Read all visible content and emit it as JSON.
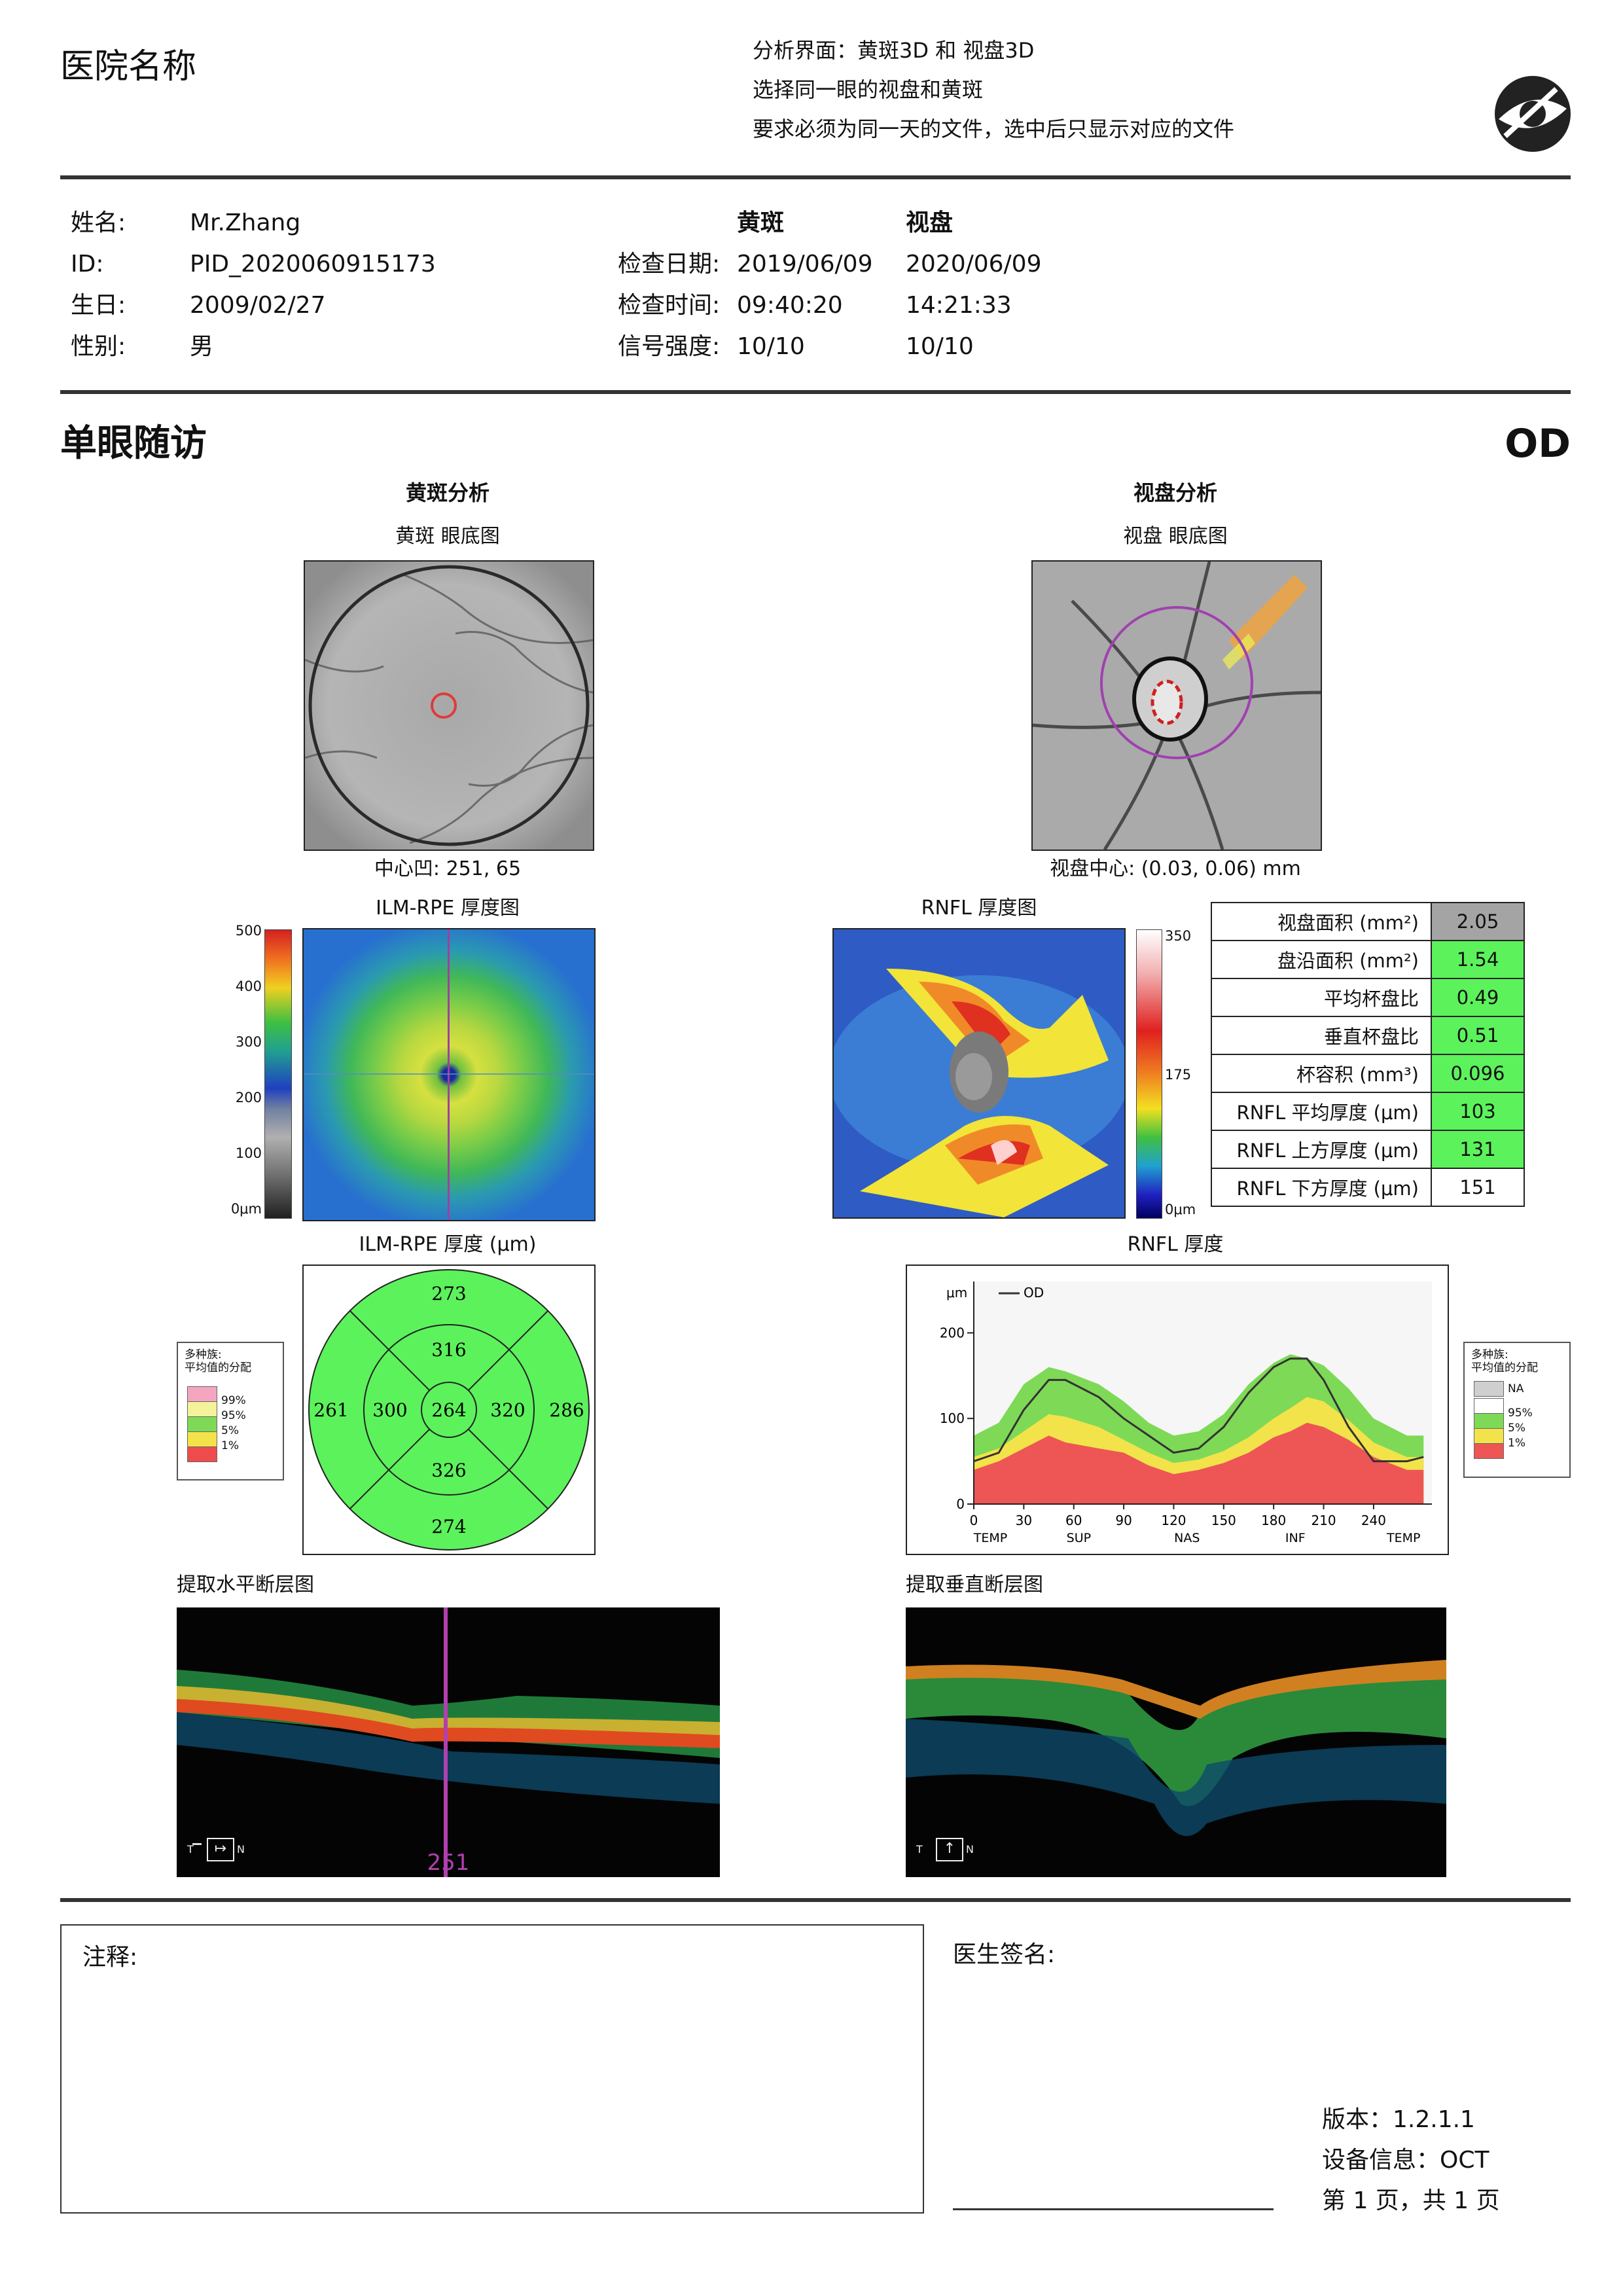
{
  "header": {
    "hospital_name": "医院名称",
    "notes": [
      "分析界面：黄斑3D 和 视盘3D",
      "选择同一眼的视盘和黄斑",
      "要求必须为同一天的文件，选中后只显示对应的文件"
    ],
    "logo_icon": "eye-logo-icon"
  },
  "patient": {
    "name_label": "姓名:",
    "name": "Mr.Zhang",
    "id_label": "ID:",
    "id": "PID_2020060915173",
    "dob_label": "生日:",
    "dob": "2009/02/27",
    "sex_label": "性别:",
    "sex": "男"
  },
  "exam": {
    "col_macula": "黄斑",
    "col_disc": "视盘",
    "date_label": "检查日期:",
    "date_macula": "2019/06/09",
    "date_disc": "2020/06/09",
    "time_label": "检查时间:",
    "time_macula": "09:40:20",
    "time_disc": "14:21:33",
    "signal_label": "信号强度:",
    "signal_macula": "10/10",
    "signal_disc": "10/10"
  },
  "section": {
    "title": "单眼随访",
    "eye": "OD"
  },
  "macula": {
    "title": "黄斑分析",
    "fundus_title": "黄斑 眼底图",
    "fovea_caption": "中心凹: 251, 65",
    "thickness_map_title": "ILM-RPE 厚度图",
    "scale_ticks": [
      "500",
      "400",
      "300",
      "200",
      "100",
      "0μm"
    ],
    "sector_title": "ILM-RPE 厚度 (μm)",
    "sectors": {
      "outer_top": "273",
      "inner_top": "316",
      "outer_left": "261",
      "inner_left": "300",
      "center": "264",
      "inner_right": "320",
      "outer_right": "286",
      "inner_bottom": "326",
      "outer_bottom": "274"
    },
    "legend": {
      "title1": "多种族:",
      "title2": "平均值的分配",
      "items": [
        "99%",
        "95%",
        "5%",
        "1%"
      ],
      "colors": [
        "#f4a6c0",
        "#f4f29a",
        "#7ed957",
        "#f2e34a",
        "#ee4c4c"
      ]
    },
    "bscan_title": "提取水平断层图",
    "bscan_marker": "251",
    "bscan_orient_left": "T",
    "bscan_orient_right": "N"
  },
  "disc": {
    "title": "视盘分析",
    "fundus_title": "视盘 眼底图",
    "center_caption": "视盘中心:  (0.03, 0.06) mm",
    "rnfl_map_title": "RNFL 厚度图",
    "scale_ticks": [
      "350",
      "175",
      "0μm"
    ],
    "params": [
      {
        "label": "视盘面积 (mm²)",
        "value": "2.05",
        "status": "gray"
      },
      {
        "label": "盘沿面积 (mm²)",
        "value": "1.54",
        "status": "green"
      },
      {
        "label": "平均杯盘比",
        "value": "0.49",
        "status": "green"
      },
      {
        "label": "垂直杯盘比",
        "value": "0.51",
        "status": "green"
      },
      {
        "label": "杯容积 (mm³)",
        "value": "0.096",
        "status": "green"
      },
      {
        "label": "RNFL 平均厚度 (μm)",
        "value": "103",
        "status": "green"
      },
      {
        "label": "RNFL 上方厚度 (μm)",
        "value": "131",
        "status": "green"
      },
      {
        "label": "RNFL 下方厚度 (μm)",
        "value": "151",
        "status": "white"
      }
    ],
    "rnfl_chart_title": "RNFL 厚度",
    "legend": {
      "title1": "多种族:",
      "title2": "平均值的分配",
      "items": [
        "NA",
        "95%",
        "5%",
        "1%"
      ],
      "colors": [
        "#cfcfcf",
        "#ffffff",
        "#7ed957",
        "#f2e34a",
        "#ee5555"
      ]
    },
    "bscan_title": "提取垂直断层图",
    "bscan_orient_left": "T",
    "bscan_orient_right": "N"
  },
  "chart_data": {
    "type": "area",
    "title": "RNFL 厚度",
    "ylabel": "μm",
    "ylim": [
      0,
      260
    ],
    "xlim": [
      0,
      275
    ],
    "yticks": [
      0,
      100,
      200
    ],
    "xticks": [
      0,
      30,
      60,
      90,
      120,
      150,
      180,
      210,
      240
    ],
    "region_labels": [
      {
        "x": 10,
        "label": "TEMP"
      },
      {
        "x": 63,
        "label": "SUP"
      },
      {
        "x": 128,
        "label": "NAS"
      },
      {
        "x": 193,
        "label": "INF"
      },
      {
        "x": 258,
        "label": "TEMP"
      }
    ],
    "x": [
      0,
      15,
      30,
      45,
      55,
      75,
      90,
      105,
      120,
      135,
      150,
      165,
      180,
      190,
      200,
      210,
      225,
      240,
      260,
      270
    ],
    "bands": [
      {
        "name": "1%",
        "values": [
          40,
          50,
          65,
          80,
          72,
          65,
          60,
          45,
          35,
          40,
          48,
          60,
          78,
          85,
          95,
          90,
          75,
          55,
          40,
          40
        ]
      },
      {
        "name": "5%",
        "values": [
          55,
          65,
          85,
          105,
          102,
          90,
          75,
          60,
          48,
          52,
          62,
          78,
          100,
          112,
          125,
          120,
          98,
          72,
          55,
          55
        ]
      },
      {
        "name": "95%",
        "values": [
          80,
          95,
          140,
          160,
          155,
          140,
          120,
          95,
          80,
          85,
          105,
          140,
          165,
          175,
          170,
          162,
          135,
          100,
          80,
          80
        ]
      }
    ],
    "series": [
      {
        "name": "OD",
        "color": "#333333",
        "values": [
          50,
          60,
          110,
          145,
          145,
          125,
          100,
          80,
          60,
          65,
          90,
          130,
          160,
          170,
          170,
          145,
          90,
          50,
          50,
          55
        ]
      }
    ]
  },
  "footer": {
    "notes_label": "注释:",
    "signature_label": "医生签名:",
    "version_label": "版本：1.2.1.1",
    "device_label": "设备信息：OCT",
    "page_label": "第 1 页，共 1 页"
  }
}
